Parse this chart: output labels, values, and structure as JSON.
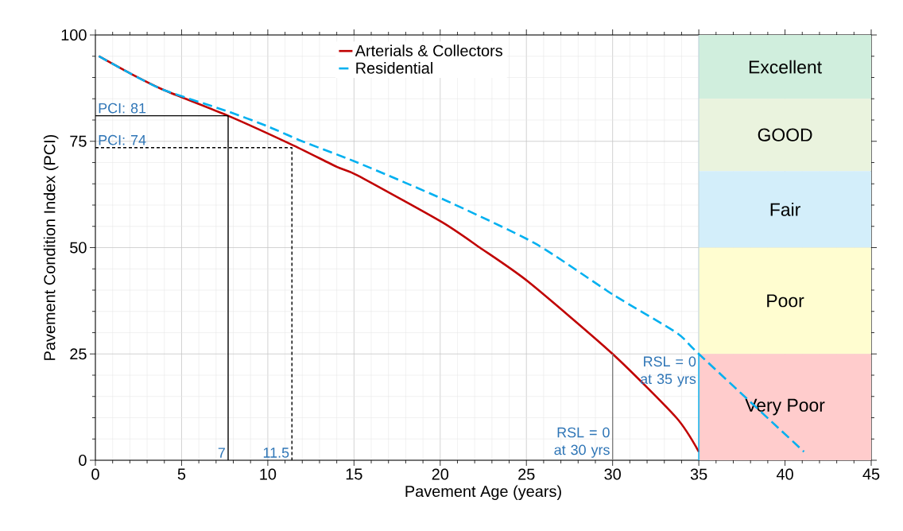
{
  "chart_data": {
    "type": "line",
    "xlabel": "Pavement Age (years)",
    "ylabel": "Pavement Condition Index (PCI)",
    "xlim": [
      0,
      45
    ],
    "ylim": [
      0,
      100
    ],
    "xticks": [
      0,
      5,
      10,
      15,
      20,
      25,
      30,
      35,
      40,
      45
    ],
    "yticks": [
      0,
      25,
      50,
      75,
      100
    ],
    "grid": true,
    "legend": "top",
    "marker": "none",
    "series": [
      {
        "name": "Arterials & Collectors",
        "color": "#c00000",
        "line_style": "solid",
        "x": [
          0.2,
          2,
          4,
          7.7,
          11.5,
          14,
          15.2,
          20.1,
          22.3,
          25.1,
          30,
          33.7,
          35
        ],
        "values": [
          95,
          91,
          87,
          81,
          74,
          69,
          67,
          56,
          50,
          42,
          25,
          10,
          2
        ]
      },
      {
        "name": "Residential",
        "color": "#00b0f0",
        "line_style": "dashed",
        "x": [
          0.2,
          2,
          4,
          7.7,
          10,
          12,
          15.2,
          20.1,
          25.5,
          30,
          33.7,
          35,
          41.1
        ],
        "values": [
          95,
          91,
          87,
          82,
          78.5,
          75,
          70,
          61.5,
          51,
          39,
          30,
          25,
          2
        ]
      },
      {
        "color": "#000000",
        "line_style": "solid",
        "x": [
          0,
          7.7,
          7.7
        ],
        "values": [
          81,
          81,
          0
        ]
      },
      {
        "color": "#000000",
        "line_style": "dashed",
        "x": [
          0,
          11.4,
          11.4
        ],
        "values": [
          73.5,
          73.5,
          0
        ]
      },
      {
        "color": "#808080",
        "line_style": "solid",
        "x": [
          30,
          30
        ],
        "values": [
          25,
          0
        ]
      },
      {
        "color": "#00b0f0",
        "line_style": "solid",
        "x": [
          35,
          35
        ],
        "values": [
          25,
          0
        ]
      }
    ],
    "ref_lines": [
      {
        "axis": "x",
        "value": 35,
        "color": "#b8d4e0"
      }
    ],
    "bands": [
      {
        "axis": "y",
        "from": 85,
        "to": 100,
        "label": "Excellent",
        "color": "#d0eedd"
      },
      {
        "axis": "y",
        "from": 68,
        "to": 85,
        "label": "GOOD",
        "color": "#eaf3de"
      },
      {
        "axis": "y",
        "from": 50,
        "to": 68,
        "label": "Fair",
        "color": "#d3eefa"
      },
      {
        "axis": "y",
        "from": 25,
        "to": 50,
        "label": "Poor",
        "color": "#fffdd0"
      },
      {
        "axis": "y",
        "from": 0,
        "to": 25,
        "label": "Very Poor",
        "color": "#ffcccc"
      }
    ],
    "annotations": [
      {
        "text": "PCI: 81",
        "x": 0,
        "y": 81
      },
      {
        "text": "PCI: 74",
        "x": 0,
        "y": 73.5
      },
      {
        "text": "7",
        "x": 7.7,
        "y": 0
      },
      {
        "text": "11.5",
        "x": 11.4,
        "y": 0
      },
      {
        "text": "RSL = 0 at 30 yrs",
        "x": 30,
        "y": 0
      },
      {
        "text": "RSL = 0 at 35 yrs",
        "x": 35,
        "y": 25
      }
    ]
  }
}
